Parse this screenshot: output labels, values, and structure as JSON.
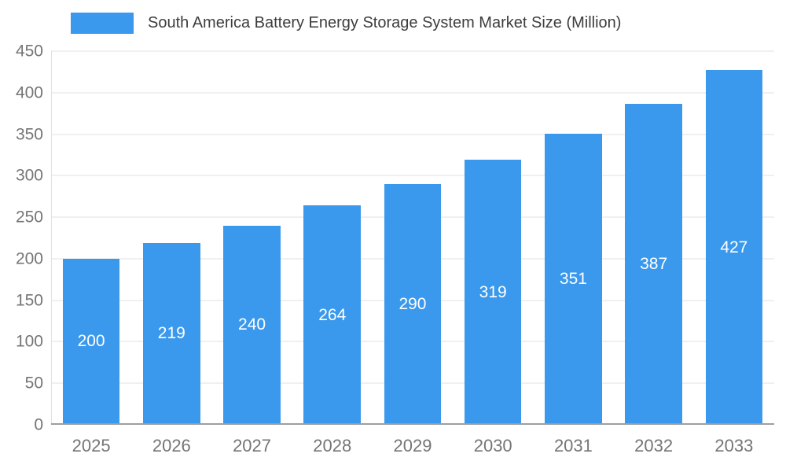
{
  "chart_data": {
    "type": "bar",
    "title": "South America Battery Energy Storage System Market Size (Million)",
    "categories": [
      "2025",
      "2026",
      "2027",
      "2028",
      "2029",
      "2030",
      "2031",
      "2032",
      "2033"
    ],
    "values": [
      200,
      219,
      240,
      264,
      290,
      319,
      351,
      387,
      427
    ],
    "xlabel": "",
    "ylabel": "",
    "ylim": [
      0,
      450
    ],
    "yticks": [
      0,
      50,
      100,
      150,
      200,
      250,
      300,
      350,
      400,
      450
    ],
    "grid": true,
    "legend_position": "top-left",
    "value_labels": "inside-center",
    "colors": {
      "bar": "#3a99ec",
      "grid_line": "#e0e0e0",
      "axis_line": "#9e9e9e",
      "tick_label": "#757575",
      "title_text": "#3d3d3d",
      "value_label": "#ffffff",
      "background": "#ffffff"
    }
  }
}
